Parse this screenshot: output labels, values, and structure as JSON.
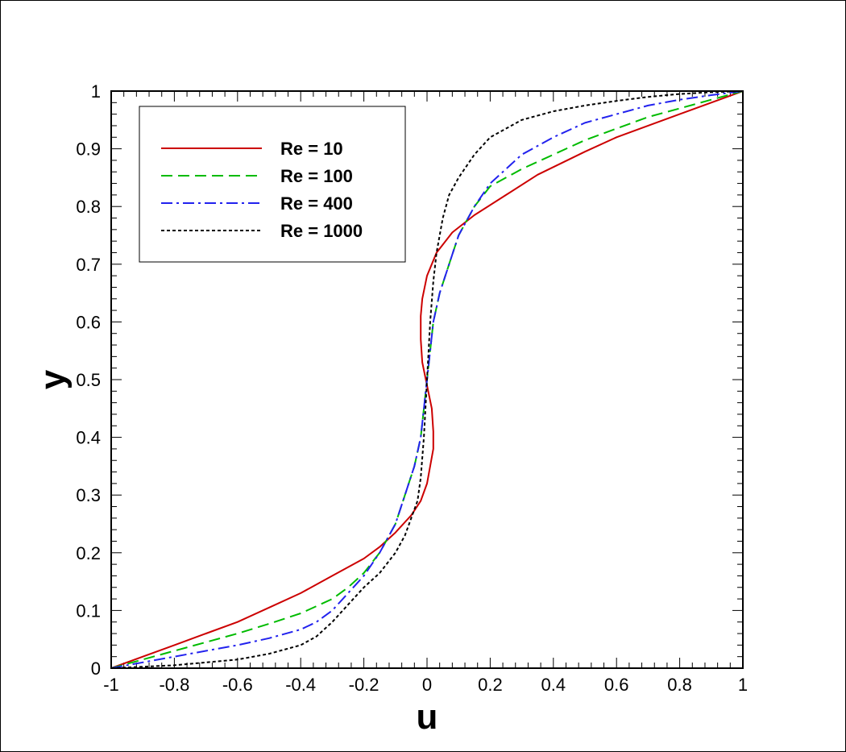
{
  "chart_data": {
    "type": "line",
    "xlabel": "u",
    "ylabel": "y",
    "xlim": [
      -1,
      1
    ],
    "ylim": [
      0,
      1
    ],
    "xticks": [
      "-1",
      "-0.8",
      "-0.6",
      "-0.4",
      "-0.2",
      "0",
      "0.2",
      "0.4",
      "0.6",
      "0.8",
      "1"
    ],
    "yticks": [
      "0",
      "0.1",
      "0.2",
      "0.3",
      "0.4",
      "0.5",
      "0.6",
      "0.7",
      "0.8",
      "0.9",
      "1"
    ],
    "grid": false,
    "legend_position": "top-left",
    "series": [
      {
        "name": "Re = 10",
        "color": "#cc0000",
        "dash": "solid",
        "points": [
          [
            -1,
            0
          ],
          [
            -0.9,
            0.02
          ],
          [
            -0.8,
            0.04
          ],
          [
            -0.7,
            0.06
          ],
          [
            -0.6,
            0.08
          ],
          [
            -0.5,
            0.105
          ],
          [
            -0.4,
            0.13
          ],
          [
            -0.3,
            0.16
          ],
          [
            -0.2,
            0.19
          ],
          [
            -0.15,
            0.21
          ],
          [
            -0.1,
            0.235
          ],
          [
            -0.05,
            0.265
          ],
          [
            -0.02,
            0.29
          ],
          [
            0,
            0.32
          ],
          [
            0.01,
            0.35
          ],
          [
            0.02,
            0.38
          ],
          [
            0.02,
            0.41
          ],
          [
            0.015,
            0.45
          ],
          [
            0,
            0.49
          ],
          [
            -0.015,
            0.53
          ],
          [
            -0.02,
            0.57
          ],
          [
            -0.02,
            0.61
          ],
          [
            -0.015,
            0.64
          ],
          [
            0,
            0.68
          ],
          [
            0.03,
            0.72
          ],
          [
            0.08,
            0.755
          ],
          [
            0.15,
            0.785
          ],
          [
            0.25,
            0.82
          ],
          [
            0.35,
            0.855
          ],
          [
            0.5,
            0.895
          ],
          [
            0.6,
            0.92
          ],
          [
            0.8,
            0.96
          ],
          [
            0.9,
            0.98
          ],
          [
            1,
            1
          ]
        ]
      },
      {
        "name": "Re = 100",
        "color": "#00bb00",
        "dash": "dashed",
        "points": [
          [
            -1,
            0
          ],
          [
            -0.9,
            0.015
          ],
          [
            -0.8,
            0.03
          ],
          [
            -0.7,
            0.045
          ],
          [
            -0.6,
            0.06
          ],
          [
            -0.5,
            0.077
          ],
          [
            -0.4,
            0.095
          ],
          [
            -0.3,
            0.12
          ],
          [
            -0.25,
            0.14
          ],
          [
            -0.2,
            0.165
          ],
          [
            -0.15,
            0.2
          ],
          [
            -0.1,
            0.25
          ],
          [
            -0.07,
            0.3
          ],
          [
            -0.04,
            0.35
          ],
          [
            -0.02,
            0.4
          ],
          [
            -0.01,
            0.45
          ],
          [
            0,
            0.5
          ],
          [
            0.01,
            0.55
          ],
          [
            0.02,
            0.6
          ],
          [
            0.04,
            0.65
          ],
          [
            0.07,
            0.7
          ],
          [
            0.1,
            0.75
          ],
          [
            0.15,
            0.8
          ],
          [
            0.2,
            0.835
          ],
          [
            0.3,
            0.865
          ],
          [
            0.4,
            0.89
          ],
          [
            0.5,
            0.915
          ],
          [
            0.6,
            0.935
          ],
          [
            0.7,
            0.955
          ],
          [
            0.8,
            0.97
          ],
          [
            0.9,
            0.985
          ],
          [
            1,
            1
          ]
        ]
      },
      {
        "name": "Re = 400",
        "color": "#2222ee",
        "dash": "dashdot",
        "points": [
          [
            -1,
            0
          ],
          [
            -0.9,
            0.01
          ],
          [
            -0.8,
            0.02
          ],
          [
            -0.7,
            0.03
          ],
          [
            -0.6,
            0.04
          ],
          [
            -0.5,
            0.052
          ],
          [
            -0.4,
            0.067
          ],
          [
            -0.35,
            0.08
          ],
          [
            -0.3,
            0.1
          ],
          [
            -0.25,
            0.13
          ],
          [
            -0.2,
            0.16
          ],
          [
            -0.15,
            0.2
          ],
          [
            -0.1,
            0.25
          ],
          [
            -0.07,
            0.3
          ],
          [
            -0.04,
            0.35
          ],
          [
            -0.02,
            0.4
          ],
          [
            -0.01,
            0.45
          ],
          [
            0,
            0.5
          ],
          [
            0.01,
            0.55
          ],
          [
            0.02,
            0.6
          ],
          [
            0.04,
            0.65
          ],
          [
            0.07,
            0.7
          ],
          [
            0.1,
            0.75
          ],
          [
            0.15,
            0.8
          ],
          [
            0.2,
            0.84
          ],
          [
            0.3,
            0.89
          ],
          [
            0.4,
            0.92
          ],
          [
            0.5,
            0.945
          ],
          [
            0.6,
            0.96
          ],
          [
            0.7,
            0.975
          ],
          [
            0.8,
            0.985
          ],
          [
            0.9,
            0.993
          ],
          [
            1,
            1
          ]
        ]
      },
      {
        "name": "Re = 1000",
        "color": "#000000",
        "dash": "dotted",
        "points": [
          [
            -1,
            0
          ],
          [
            -0.8,
            0.005
          ],
          [
            -0.6,
            0.015
          ],
          [
            -0.5,
            0.025
          ],
          [
            -0.4,
            0.04
          ],
          [
            -0.35,
            0.055
          ],
          [
            -0.3,
            0.08
          ],
          [
            -0.25,
            0.11
          ],
          [
            -0.2,
            0.14
          ],
          [
            -0.15,
            0.165
          ],
          [
            -0.1,
            0.2
          ],
          [
            -0.07,
            0.23
          ],
          [
            -0.05,
            0.26
          ],
          [
            -0.03,
            0.29
          ],
          [
            -0.02,
            0.33
          ],
          [
            -0.01,
            0.4
          ],
          [
            0,
            0.5
          ],
          [
            0.01,
            0.6
          ],
          [
            0.02,
            0.67
          ],
          [
            0.03,
            0.72
          ],
          [
            0.05,
            0.78
          ],
          [
            0.07,
            0.82
          ],
          [
            0.1,
            0.85
          ],
          [
            0.15,
            0.89
          ],
          [
            0.2,
            0.92
          ],
          [
            0.3,
            0.95
          ],
          [
            0.4,
            0.965
          ],
          [
            0.5,
            0.975
          ],
          [
            0.6,
            0.983
          ],
          [
            0.7,
            0.99
          ],
          [
            0.8,
            0.995
          ],
          [
            0.9,
            0.998
          ],
          [
            1,
            1
          ]
        ]
      }
    ]
  }
}
